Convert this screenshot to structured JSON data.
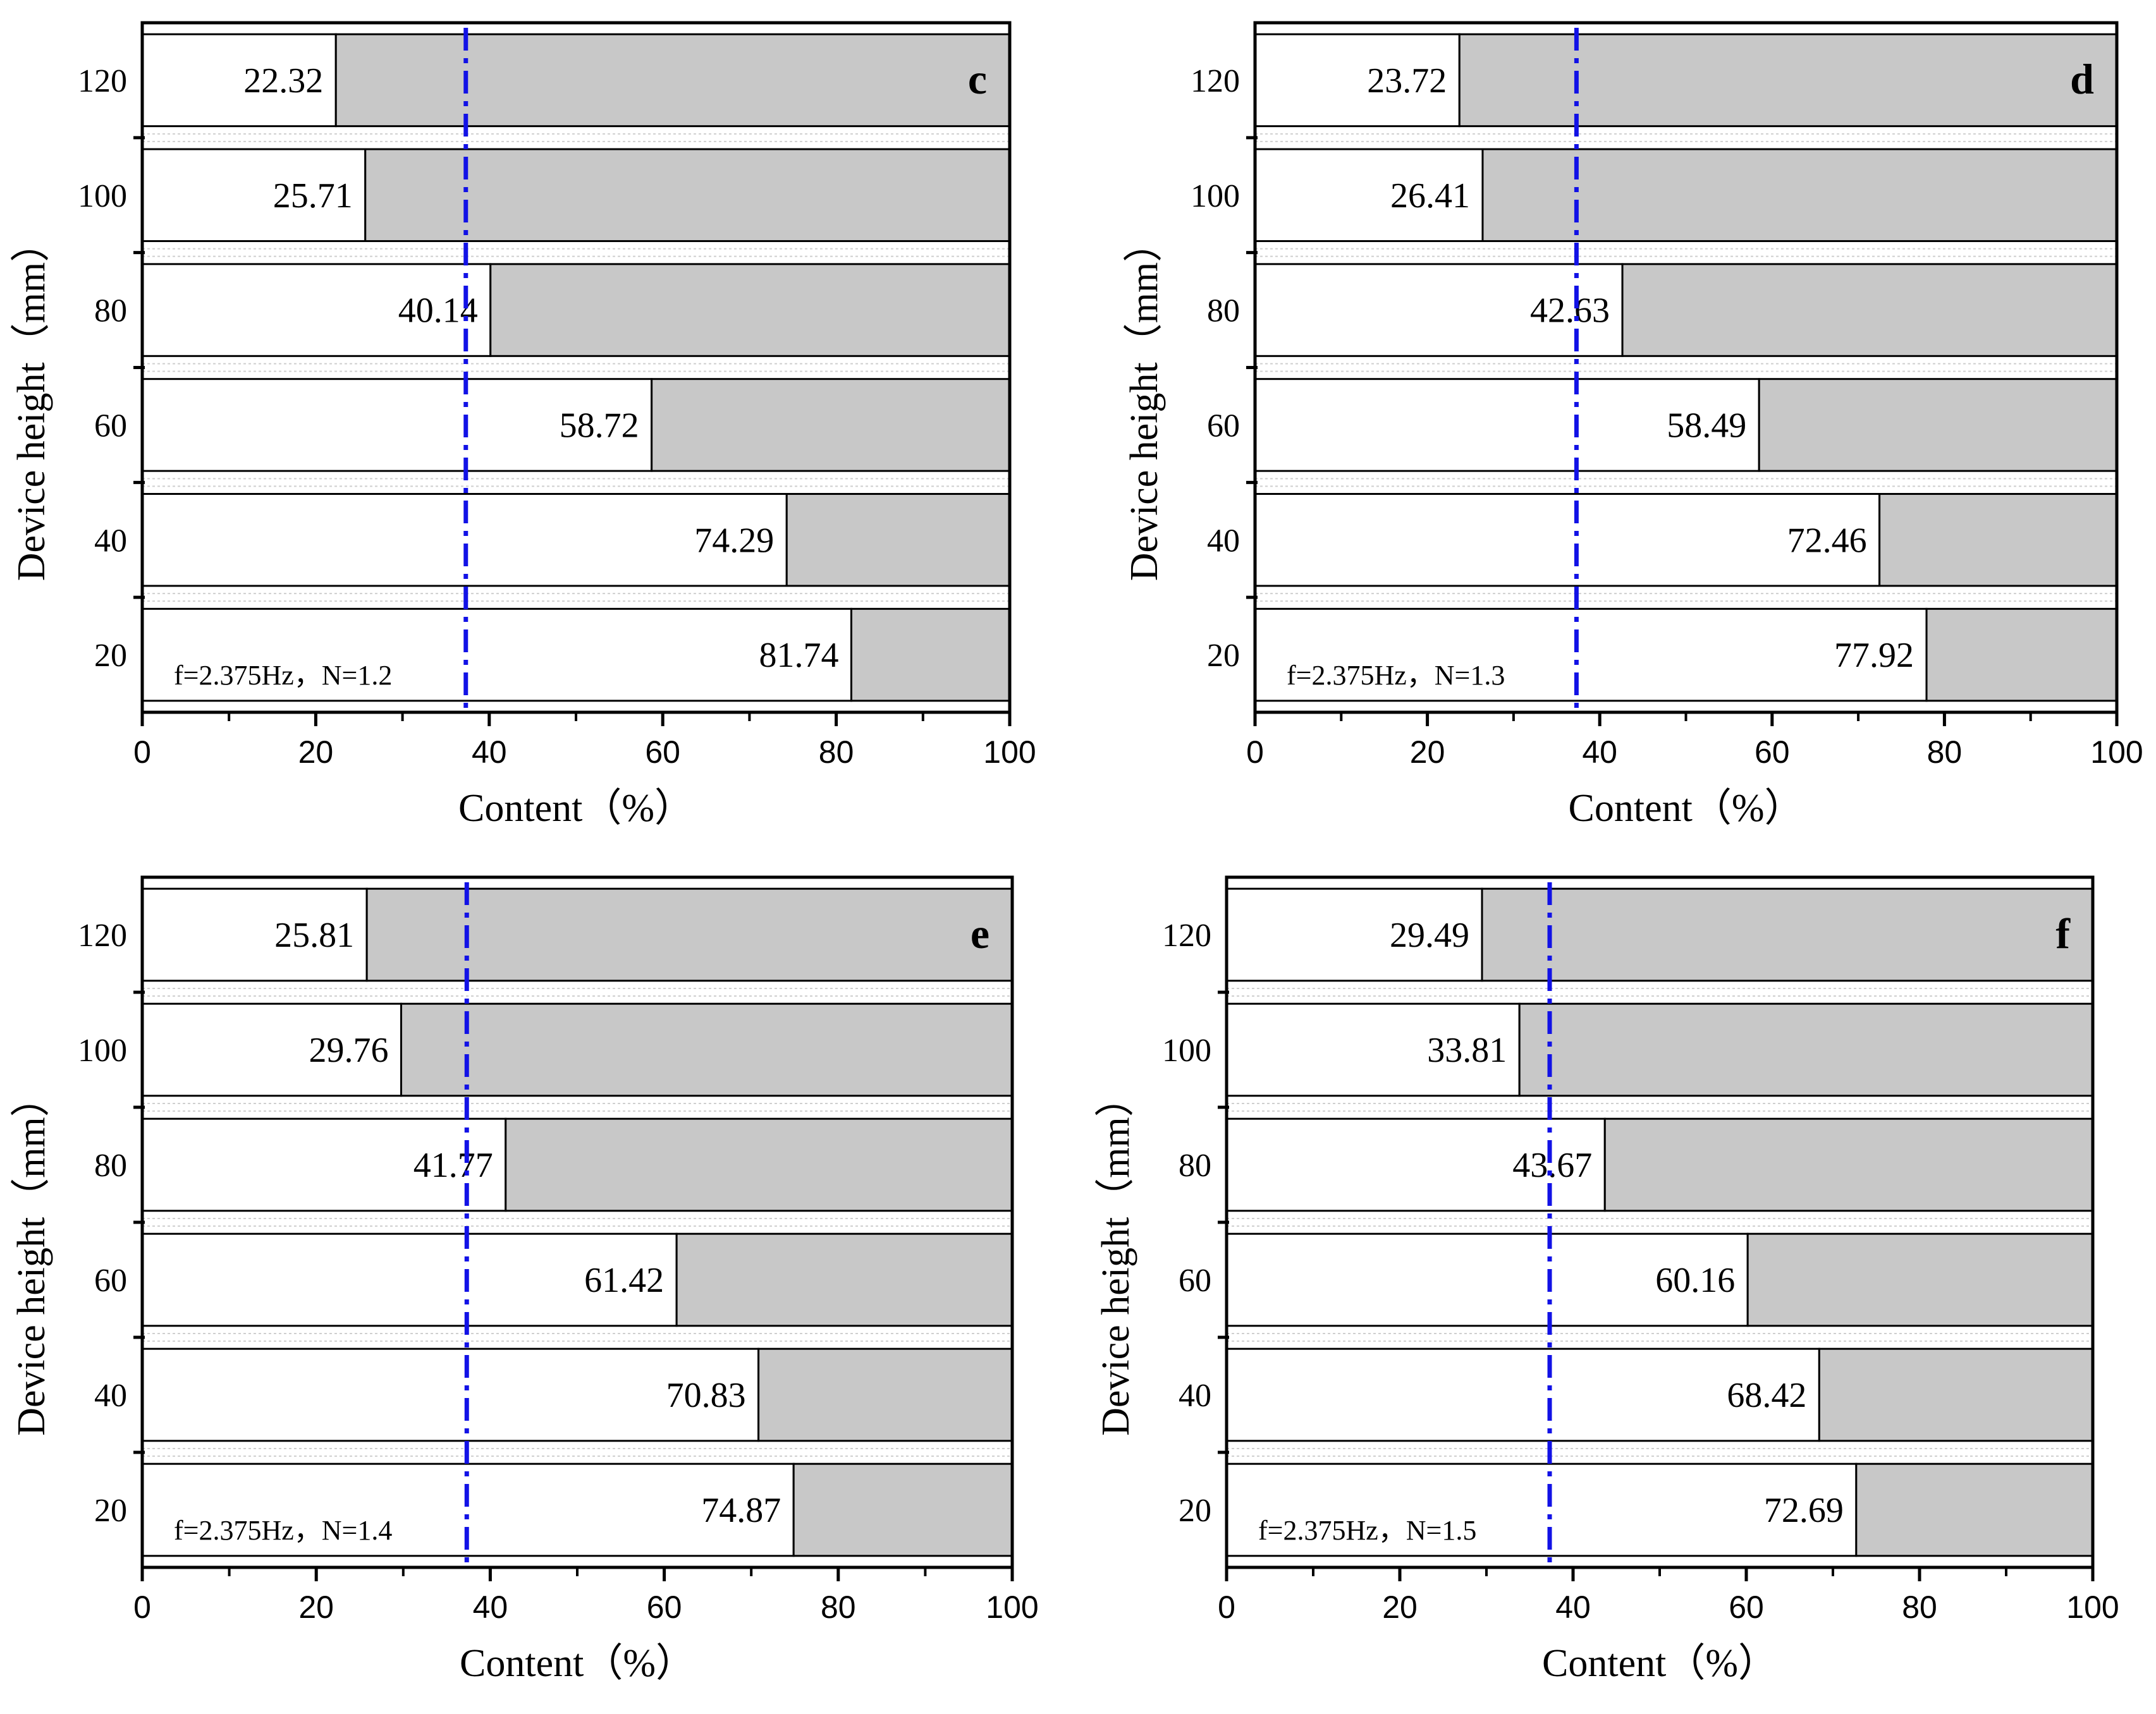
{
  "chart_data": [
    {
      "type": "bar",
      "orientation": "horizontal",
      "stacked": true,
      "panel": "c",
      "annotation": "f=2.375Hz，N=1.2",
      "categories": [
        "20",
        "40",
        "60",
        "80",
        "100",
        "120"
      ],
      "values": [
        81.74,
        74.29,
        58.72,
        40.14,
        25.71,
        22.32
      ],
      "value_labels": [
        "81.74",
        "74.29",
        "58.72",
        "40.14",
        "25.71",
        "22.32"
      ],
      "xlabel": "Content（%）",
      "ylabel": "Device height（mm）",
      "xlim": [
        0,
        100
      ],
      "xticks": [
        "0",
        "20",
        "40",
        "60",
        "80",
        "100"
      ],
      "reference_line_x": 37.3
    },
    {
      "type": "bar",
      "orientation": "horizontal",
      "stacked": true,
      "panel": "d",
      "annotation": "f=2.375Hz，N=1.3",
      "categories": [
        "20",
        "40",
        "60",
        "80",
        "100",
        "120"
      ],
      "values": [
        77.92,
        72.46,
        58.49,
        42.63,
        26.41,
        23.72
      ],
      "value_labels": [
        "77.92",
        "72.46",
        "58.49",
        "42.63",
        "26.41",
        "23.72"
      ],
      "xlabel": "Content（%）",
      "ylabel": "Device height（mm）",
      "xlim": [
        0,
        100
      ],
      "xticks": [
        "0",
        "20",
        "40",
        "60",
        "80",
        "100"
      ],
      "reference_line_x": 37.3
    },
    {
      "type": "bar",
      "orientation": "horizontal",
      "stacked": true,
      "panel": "e",
      "annotation": "f=2.375Hz，N=1.4",
      "categories": [
        "20",
        "40",
        "60",
        "80",
        "100",
        "120"
      ],
      "values": [
        74.87,
        70.83,
        61.42,
        41.77,
        29.76,
        25.81
      ],
      "value_labels": [
        "74.87",
        "70.83",
        "61.42",
        "41.77",
        "29.76",
        "25.81"
      ],
      "xlabel": "Content（%）",
      "ylabel": "Device height（mm）",
      "xlim": [
        0,
        100
      ],
      "xticks": [
        "0",
        "20",
        "40",
        "60",
        "80",
        "100"
      ],
      "reference_line_x": 37.3
    },
    {
      "type": "bar",
      "orientation": "horizontal",
      "stacked": true,
      "panel": "f",
      "annotation": "f=2.375Hz，N=1.5",
      "categories": [
        "20",
        "40",
        "60",
        "80",
        "100",
        "120"
      ],
      "values": [
        72.69,
        68.42,
        60.16,
        43.67,
        33.81,
        29.49
      ],
      "value_labels": [
        "72.69",
        "68.42",
        "60.16",
        "43.67",
        "33.81",
        "29.49"
      ],
      "xlabel": "Content（%）",
      "ylabel": "Device height（mm）",
      "xlim": [
        0,
        100
      ],
      "xticks": [
        "0",
        "20",
        "40",
        "60",
        "80",
        "100"
      ],
      "reference_line_x": 37.3
    }
  ],
  "colors": {
    "remainder_fill": "#c8c8c8",
    "content_fill": "#ffffff",
    "reference_line": "#1212e6"
  }
}
